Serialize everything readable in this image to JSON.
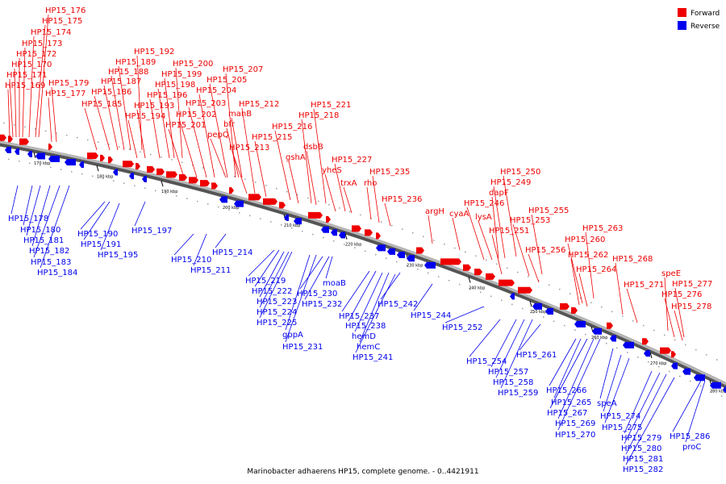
{
  "caption": "Marinobacter adhaerens HP15, complete genome. - 0..4421911",
  "legend": [
    {
      "label": "Forward",
      "color": "#ee0000"
    },
    {
      "label": "Reverse",
      "color": "#0000ee"
    }
  ],
  "colors": {
    "forward": "#ee0000",
    "reverse": "#0000ee",
    "backbone": "#888888"
  },
  "ticks": [
    "170 kbp",
    "180 kbp",
    "190 kbp",
    "200 kbp",
    "210 kbp",
    "220 kbp",
    "230 kbp",
    "240 kbp",
    "250 kbp",
    "260 kbp",
    "270 kbp",
    "280 kbp"
  ],
  "forward_labels": [
    "HP15_176",
    "HP15_175",
    "HP15_174",
    "HP15_173",
    "HP15_172",
    "HP15_170",
    "HP15_171",
    "HP15_169",
    "HP15_179",
    "HP15_177",
    "HP15_192",
    "HP15_189",
    "HP15_188",
    "HP15_187",
    "HP15_186",
    "HP15_185",
    "HP15_200",
    "HP15_199",
    "HP15_198",
    "HP15_196",
    "HP15_193",
    "HP15_194",
    "HP15_207",
    "HP15_205",
    "HP15_204",
    "HP15_203",
    "HP15_202",
    "HP15_201",
    "manB",
    "bfr",
    "pepQ",
    "HP15_212",
    "HP15_215",
    "HP15_213",
    "HP15_216",
    "HP15_221",
    "HP15_218",
    "dsbB",
    "gshA",
    "HP15_227",
    "yheS",
    "trxA",
    "rho",
    "HP15_235",
    "HP15_236",
    "argH",
    "cyaA",
    "HP15_250",
    "HP15_249",
    "dapF",
    "HP15_246",
    "lysA",
    "HP15_255",
    "HP15_253",
    "HP15_251",
    "HP15_256",
    "HP15_263",
    "HP15_260",
    "HP15_262",
    "HP15_264",
    "HP15_268",
    "HP15_271",
    "speE",
    "HP15_277",
    "HP15_276",
    "HP15_278"
  ],
  "reverse_labels": [
    "HP15_178",
    "HP15_180",
    "HP15_181",
    "HP15_182",
    "HP15_183",
    "HP15_184",
    "HP15_190",
    "HP15_191",
    "HP15_195",
    "HP15_197",
    "HP15_210",
    "HP15_211",
    "HP15_214",
    "HP15_219",
    "HP15_222",
    "HP15_223",
    "HP15_224",
    "HP15_225",
    "gppA",
    "HP15_231",
    "HP15_230",
    "HP15_232",
    "moaB",
    "HP15_237",
    "HP15_238",
    "hemD",
    "hemC",
    "HP15_241",
    "HP15_242",
    "HP15_244",
    "HP15_252",
    "HP15_254",
    "HP15_257",
    "HP15_258",
    "HP15_259",
    "HP15_261",
    "HP15_266",
    "HP15_265",
    "HP15_267",
    "HP15_269",
    "HP15_270",
    "speA",
    "HP15_274",
    "HP15_275",
    "HP15_279",
    "HP15_280",
    "HP15_281",
    "HP15_282",
    "HP15_286",
    "proC"
  ]
}
